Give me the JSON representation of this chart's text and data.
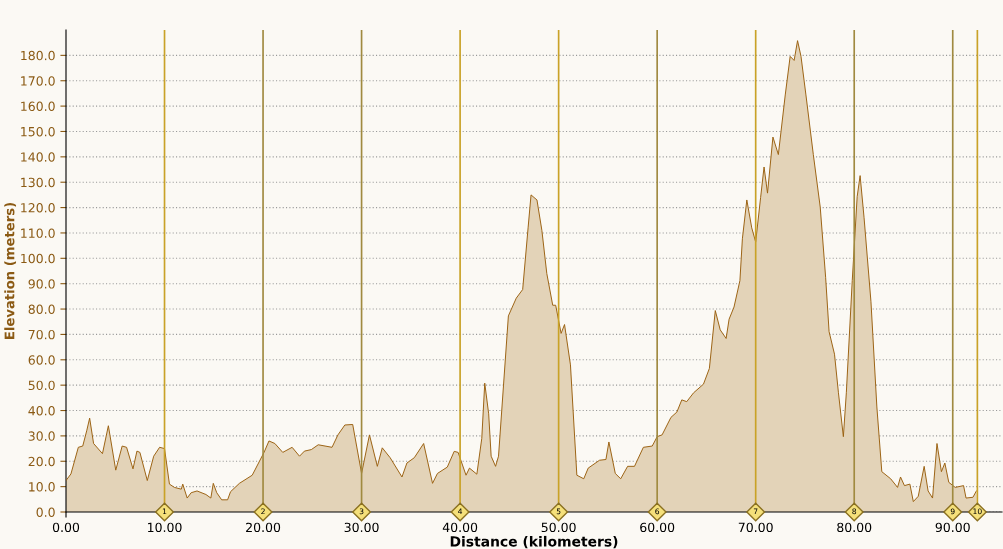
{
  "chart_data": {
    "type": "area",
    "xlabel": "Distance (kilometers)",
    "ylabel": "Elevation (meters)",
    "xlim": [
      0,
      95
    ],
    "ylim": [
      0,
      190
    ],
    "xticks": [
      {
        "value": 0,
        "label": "0.00"
      },
      {
        "value": 10,
        "label": "10.00"
      },
      {
        "value": 20,
        "label": "20.00"
      },
      {
        "value": 30,
        "label": "30.00"
      },
      {
        "value": 40,
        "label": "40.00"
      },
      {
        "value": 50,
        "label": "50.00"
      },
      {
        "value": 60,
        "label": "60.00"
      },
      {
        "value": 70,
        "label": "70.00"
      },
      {
        "value": 80,
        "label": "80.00"
      },
      {
        "value": 90,
        "label": "90.00"
      }
    ],
    "yticks": [
      {
        "value": 0,
        "label": "0.0"
      },
      {
        "value": 10,
        "label": "10.0"
      },
      {
        "value": 20,
        "label": "20.0"
      },
      {
        "value": 30,
        "label": "30.0"
      },
      {
        "value": 40,
        "label": "40.0"
      },
      {
        "value": 50,
        "label": "50.0"
      },
      {
        "value": 60,
        "label": "60.0"
      },
      {
        "value": 70,
        "label": "70.0"
      },
      {
        "value": 80,
        "label": "80.0"
      },
      {
        "value": 90,
        "label": "90.0"
      },
      {
        "value": 100,
        "label": "100.0"
      },
      {
        "value": 110,
        "label": "110.0"
      },
      {
        "value": 120,
        "label": "120.0"
      },
      {
        "value": 130,
        "label": "130.0"
      },
      {
        "value": 140,
        "label": "140.0"
      },
      {
        "value": 150,
        "label": "150.0"
      },
      {
        "value": 160,
        "label": "160.0"
      },
      {
        "value": 170,
        "label": "170.0"
      },
      {
        "value": 180,
        "label": "180.0"
      }
    ],
    "grid": "y",
    "legend": false,
    "series": [
      {
        "color": "#9a6010",
        "x": [
          0,
          0.5,
          1.25,
          1.7,
          2.1,
          2.4,
          2.8,
          3.7,
          4.3,
          5.05,
          5.7,
          6.15,
          6.8,
          7.2,
          7.5,
          8.25,
          8.9,
          9.5,
          10.0,
          10.5,
          11,
          11.7,
          11.85,
          12.3,
          12.7,
          13.3,
          14.2,
          14.7,
          14.95,
          15.3,
          15.8,
          16.4,
          16.7,
          17.6,
          18.9,
          20.1,
          20.6,
          21.2,
          22,
          22.95,
          23.7,
          24.2,
          24.9,
          25.6,
          27,
          27.6,
          28.3,
          29.1,
          30,
          30.8,
          31.6,
          32.1,
          32.9,
          34.1,
          34.6,
          35.35,
          36.3,
          37.2,
          37.7,
          38.7,
          39.4,
          39.8,
          40.6,
          40.95,
          41.7,
          42.2,
          42.5,
          42.9,
          43.15,
          43.6,
          43.9,
          44.4,
          44.9,
          45.7,
          46.35,
          46.9,
          47.2,
          47.8,
          48.3,
          48.8,
          49.4,
          49.7,
          50.25,
          50.6,
          51.2,
          51.85,
          52.55,
          53,
          54.15,
          54.8,
          55.1,
          55.75,
          56.3,
          57,
          57.7,
          58.6,
          59.5,
          60,
          60.5,
          61.4,
          62,
          62.5,
          63,
          63.7,
          64.7,
          65.3,
          65.9,
          66.4,
          67,
          67.3,
          67.8,
          68.4,
          68.65,
          69.1,
          69.6,
          70,
          70.5,
          70.85,
          71.2,
          71.75,
          72.3,
          73,
          73.5,
          73.9,
          74.25,
          74.6,
          75.1,
          75.85,
          76.55,
          77.1,
          77.45,
          78,
          78.4,
          78.9,
          79.2,
          79.8,
          80.3,
          80.6,
          81,
          81.7,
          82.3,
          82.8,
          83.7,
          84.4,
          84.7,
          85.1,
          85.65,
          86,
          86.5,
          87.1,
          87.5,
          87.95,
          88.4,
          88.85,
          89.2,
          89.6,
          90.25,
          91.1,
          91.35,
          92.05,
          92.4
        ],
        "values": [
          12.4,
          15,
          25.5,
          26,
          32,
          37,
          27,
          23,
          34,
          16.5,
          26,
          25.5,
          17,
          24,
          23.5,
          12.4,
          22,
          25.5,
          25,
          11,
          9.7,
          9,
          11,
          5.5,
          7.6,
          8.3,
          6.9,
          5.5,
          11.3,
          7.6,
          4.8,
          4.8,
          8,
          11.3,
          14.5,
          23.5,
          28,
          27,
          23.5,
          25.5,
          22,
          24,
          24.6,
          26.5,
          25.5,
          30.4,
          34.3,
          34.5,
          15.2,
          30.4,
          18,
          25.3,
          21.4,
          13.8,
          19.3,
          21.4,
          27,
          11.3,
          15.2,
          17.7,
          23.9,
          23.5,
          14.5,
          17.3,
          14.9,
          29,
          50.8,
          38.7,
          22,
          18,
          22,
          49.7,
          77.3,
          84.3,
          87.7,
          112,
          125,
          123,
          111,
          94,
          81.5,
          81.5,
          70.4,
          73.9,
          58,
          14.5,
          13.1,
          17.3,
          20.4,
          20.7,
          27.6,
          15.2,
          13.1,
          18,
          18,
          25.5,
          26,
          29.7,
          30.4,
          37.3,
          39.4,
          44.2,
          43.5,
          47,
          50.4,
          56.6,
          79.4,
          71.8,
          68.4,
          76,
          80.8,
          91.2,
          107.7,
          123,
          112,
          106.4,
          124,
          136,
          125.7,
          147.8,
          140.9,
          164.4,
          179.6,
          178,
          185.8,
          179.6,
          164.4,
          140.9,
          120.2,
          92.5,
          71.1,
          62.2,
          47,
          29.7,
          47,
          91.2,
          124.3,
          132.6,
          116,
          82.9,
          41.4,
          15.9,
          13.1,
          9.7,
          13.8,
          10.4,
          11,
          4.1,
          6.2,
          18,
          8.3,
          5.5,
          27,
          15.9,
          19.3,
          11.7,
          9.7,
          10.4,
          5.5,
          5.8,
          8.3
        ]
      }
    ],
    "ref_lines": [
      {
        "axis": "x",
        "value": 10,
        "color": "#c9a227"
      },
      {
        "axis": "x",
        "value": 20,
        "color": "#a08a40"
      },
      {
        "axis": "x",
        "value": 30,
        "color": "#a08a40"
      },
      {
        "axis": "x",
        "value": 40,
        "color": "#c9a227"
      },
      {
        "axis": "x",
        "value": 50,
        "color": "#c9a227"
      },
      {
        "axis": "x",
        "value": 60,
        "color": "#a08a40"
      },
      {
        "axis": "x",
        "value": 70,
        "color": "#c9a227"
      },
      {
        "axis": "x",
        "value": 80,
        "color": "#a08a40"
      },
      {
        "axis": "x",
        "value": 90,
        "color": "#a08a40"
      },
      {
        "axis": "x",
        "value": 92.5,
        "color": "#c9a227"
      }
    ],
    "annotations": [
      {
        "text": "1",
        "x": 10,
        "y": 0
      },
      {
        "text": "2",
        "x": 20,
        "y": 0
      },
      {
        "text": "3",
        "x": 30,
        "y": 0
      },
      {
        "text": "4",
        "x": 40,
        "y": 0
      },
      {
        "text": "5",
        "x": 50,
        "y": 0
      },
      {
        "text": "6",
        "x": 60,
        "y": 0
      },
      {
        "text": "7",
        "x": 70,
        "y": 0
      },
      {
        "text": "8",
        "x": 80,
        "y": 0
      },
      {
        "text": "9",
        "x": 90,
        "y": 0
      },
      {
        "text": "10",
        "x": 92.5,
        "y": 0
      }
    ]
  }
}
